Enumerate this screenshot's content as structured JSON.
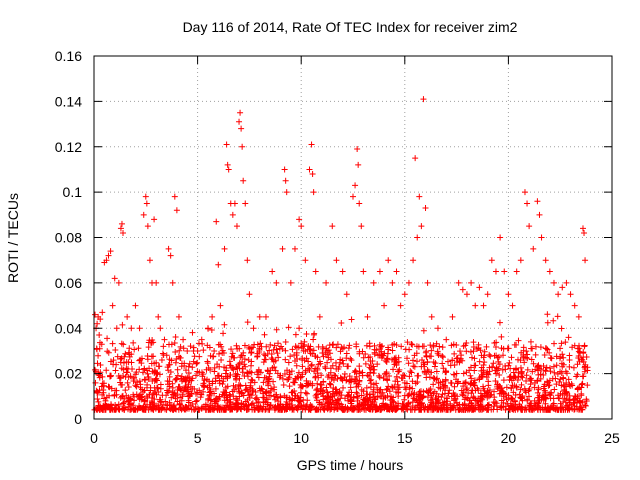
{
  "chart_data": {
    "type": "scatter",
    "title": "Day 116 of 2014, Rate Of TEC Index for receiver zim2",
    "xlabel": "GPS time / hours",
    "ylabel": "ROTI / TECUs",
    "xlim": [
      0,
      25
    ],
    "ylim": [
      0,
      0.16
    ],
    "xticks": [
      "0",
      "5",
      "10",
      "15",
      "20",
      "25"
    ],
    "yticks": [
      "0",
      "0.02",
      "0.04",
      "0.06",
      "0.08",
      "0.1",
      "0.12",
      "0.14",
      "0.16"
    ],
    "grid": true,
    "marker": "+",
    "color": "#ff0000",
    "series": [
      {
        "name": "ROTI",
        "points": [
          [
            0.05,
            0.046
          ],
          [
            0.1,
            0.04
          ],
          [
            0.15,
            0.042
          ],
          [
            0.2,
            0.045
          ],
          [
            0.25,
            0.037
          ],
          [
            0.3,
            0.044
          ],
          [
            0.4,
            0.047
          ],
          [
            0.5,
            0.069
          ],
          [
            0.6,
            0.07
          ],
          [
            0.7,
            0.072
          ],
          [
            0.8,
            0.074
          ],
          [
            0.9,
            0.05
          ],
          [
            1.0,
            0.062
          ],
          [
            1.1,
            0.04
          ],
          [
            1.2,
            0.06
          ],
          [
            1.3,
            0.084
          ],
          [
            1.35,
            0.086
          ],
          [
            1.4,
            0.082
          ],
          [
            1.6,
            0.045
          ],
          [
            1.8,
            0.04
          ],
          [
            2.0,
            0.05
          ],
          [
            2.2,
            0.04
          ],
          [
            2.4,
            0.09
          ],
          [
            2.5,
            0.098
          ],
          [
            2.55,
            0.095
          ],
          [
            2.6,
            0.085
          ],
          [
            2.7,
            0.07
          ],
          [
            2.8,
            0.06
          ],
          [
            2.9,
            0.088
          ],
          [
            3.0,
            0.06
          ],
          [
            3.1,
            0.045
          ],
          [
            3.2,
            0.04
          ],
          [
            3.4,
            0.035
          ],
          [
            3.6,
            0.075
          ],
          [
            3.7,
            0.072
          ],
          [
            3.8,
            0.06
          ],
          [
            3.9,
            0.098
          ],
          [
            4.0,
            0.092
          ],
          [
            4.1,
            0.045
          ],
          [
            4.3,
            0.035
          ],
          [
            4.5,
            0.03
          ],
          [
            4.8,
            0.03
          ],
          [
            5.0,
            0.03
          ],
          [
            5.2,
            0.035
          ],
          [
            5.5,
            0.04
          ],
          [
            5.7,
            0.045
          ],
          [
            5.9,
            0.087
          ],
          [
            6.0,
            0.068
          ],
          [
            6.1,
            0.05
          ],
          [
            6.3,
            0.075
          ],
          [
            6.4,
            0.121
          ],
          [
            6.45,
            0.112
          ],
          [
            6.5,
            0.11
          ],
          [
            6.6,
            0.095
          ],
          [
            6.7,
            0.09
          ],
          [
            6.8,
            0.095
          ],
          [
            6.9,
            0.085
          ],
          [
            7.0,
            0.131
          ],
          [
            7.05,
            0.135
          ],
          [
            7.1,
            0.128
          ],
          [
            7.15,
            0.12
          ],
          [
            7.2,
            0.105
          ],
          [
            7.3,
            0.095
          ],
          [
            7.4,
            0.07
          ],
          [
            7.5,
            0.055
          ],
          [
            7.7,
            0.04
          ],
          [
            8.0,
            0.045
          ],
          [
            8.3,
            0.045
          ],
          [
            8.6,
            0.065
          ],
          [
            8.8,
            0.06
          ],
          [
            9.1,
            0.075
          ],
          [
            9.2,
            0.11
          ],
          [
            9.25,
            0.105
          ],
          [
            9.3,
            0.1
          ],
          [
            9.5,
            0.06
          ],
          [
            9.7,
            0.075
          ],
          [
            9.9,
            0.088
          ],
          [
            10.0,
            0.085
          ],
          [
            10.2,
            0.07
          ],
          [
            10.4,
            0.11
          ],
          [
            10.5,
            0.121
          ],
          [
            10.55,
            0.108
          ],
          [
            10.6,
            0.1
          ],
          [
            10.7,
            0.065
          ],
          [
            10.9,
            0.045
          ],
          [
            11.2,
            0.06
          ],
          [
            11.5,
            0.085
          ],
          [
            11.7,
            0.07
          ],
          [
            12.0,
            0.065
          ],
          [
            12.2,
            0.055
          ],
          [
            12.5,
            0.098
          ],
          [
            12.6,
            0.103
          ],
          [
            12.7,
            0.119
          ],
          [
            12.75,
            0.112
          ],
          [
            12.8,
            0.095
          ],
          [
            12.9,
            0.085
          ],
          [
            13.0,
            0.065
          ],
          [
            13.2,
            0.045
          ],
          [
            13.5,
            0.06
          ],
          [
            13.8,
            0.065
          ],
          [
            14.0,
            0.05
          ],
          [
            14.2,
            0.07
          ],
          [
            14.4,
            0.06
          ],
          [
            14.6,
            0.065
          ],
          [
            14.8,
            0.05
          ],
          [
            15.0,
            0.055
          ],
          [
            15.2,
            0.06
          ],
          [
            15.4,
            0.07
          ],
          [
            15.5,
            0.115
          ],
          [
            15.6,
            0.08
          ],
          [
            15.7,
            0.098
          ],
          [
            15.8,
            0.085
          ],
          [
            15.9,
            0.141
          ],
          [
            16.0,
            0.093
          ],
          [
            16.1,
            0.06
          ],
          [
            16.3,
            0.045
          ],
          [
            16.6,
            0.04
          ],
          [
            17.0,
            0.035
          ],
          [
            17.3,
            0.045
          ],
          [
            17.6,
            0.06
          ],
          [
            17.8,
            0.057
          ],
          [
            18.0,
            0.055
          ],
          [
            18.2,
            0.06
          ],
          [
            18.4,
            0.05
          ],
          [
            18.6,
            0.058
          ],
          [
            18.8,
            0.05
          ],
          [
            19.0,
            0.055
          ],
          [
            19.2,
            0.07
          ],
          [
            19.4,
            0.065
          ],
          [
            19.6,
            0.08
          ],
          [
            19.8,
            0.065
          ],
          [
            20.0,
            0.055
          ],
          [
            20.2,
            0.05
          ],
          [
            20.4,
            0.065
          ],
          [
            20.6,
            0.07
          ],
          [
            20.8,
            0.1
          ],
          [
            20.9,
            0.095
          ],
          [
            21.0,
            0.085
          ],
          [
            21.2,
            0.075
          ],
          [
            21.4,
            0.096
          ],
          [
            21.5,
            0.09
          ],
          [
            21.6,
            0.08
          ],
          [
            21.8,
            0.07
          ],
          [
            22.0,
            0.065
          ],
          [
            22.2,
            0.06
          ],
          [
            22.4,
            0.055
          ],
          [
            22.6,
            0.058
          ],
          [
            22.8,
            0.06
          ],
          [
            23.0,
            0.055
          ],
          [
            23.2,
            0.05
          ],
          [
            23.4,
            0.045
          ],
          [
            23.6,
            0.084
          ],
          [
            23.65,
            0.082
          ],
          [
            23.7,
            0.07
          ]
        ]
      }
    ]
  }
}
